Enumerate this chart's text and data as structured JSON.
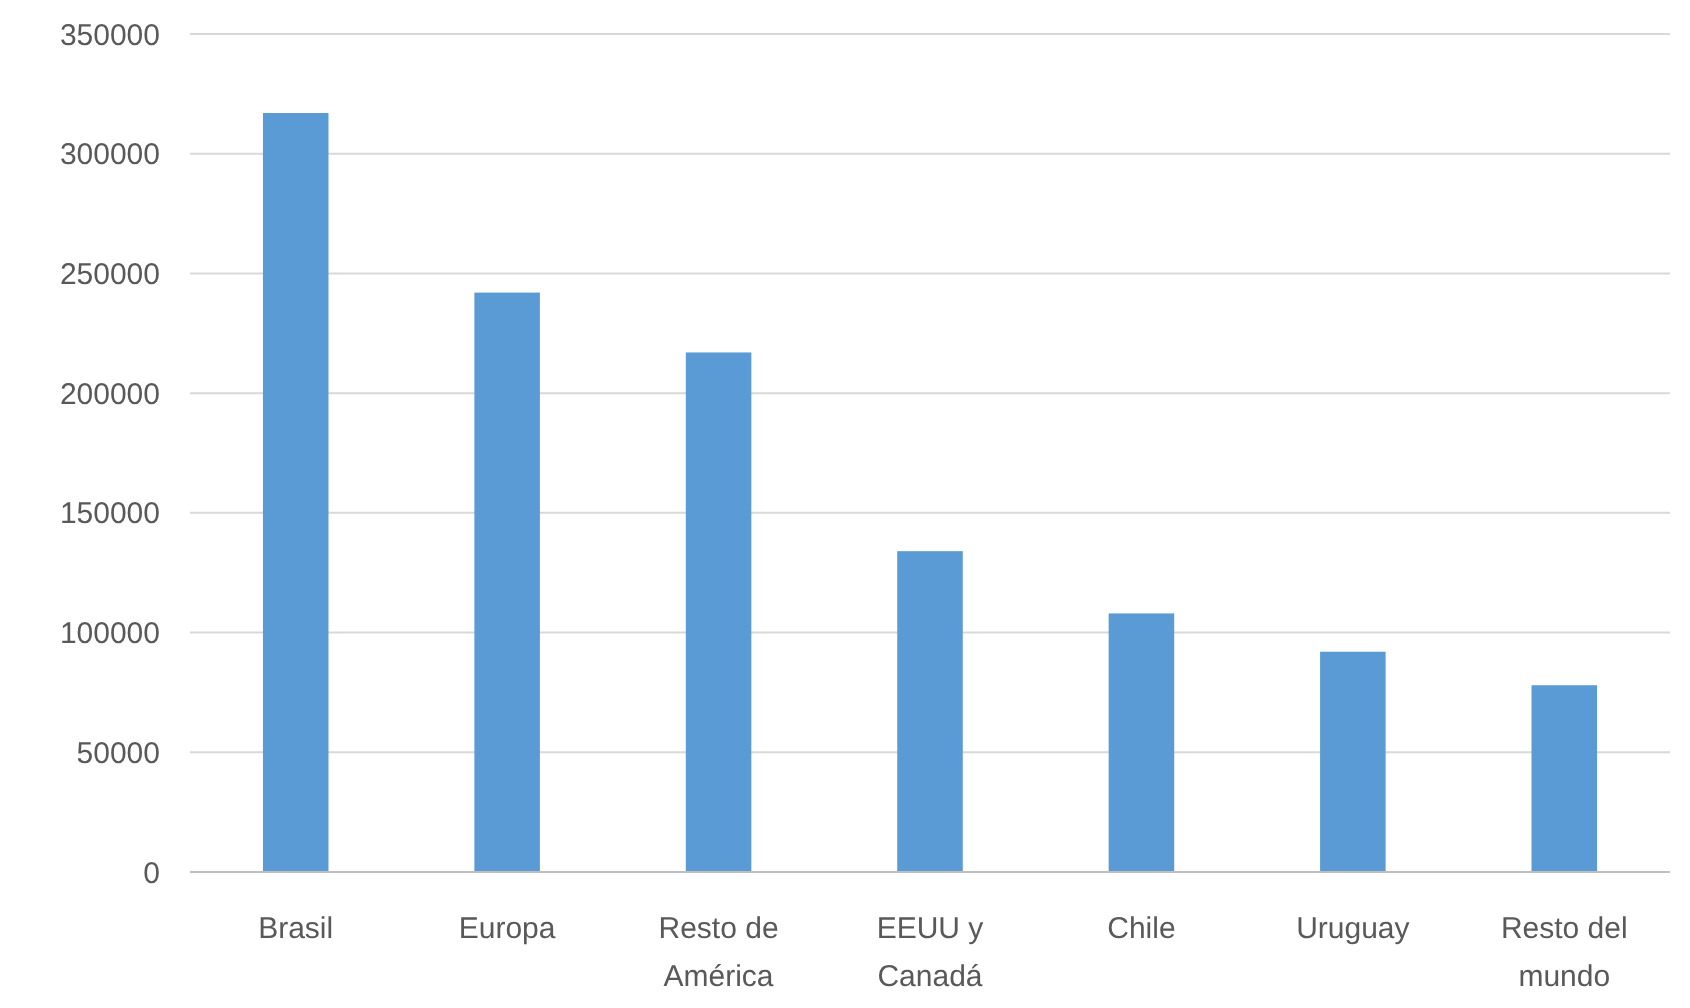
{
  "chart_data": {
    "type": "bar",
    "categories": [
      "Brasil",
      "Europa",
      "Resto de América",
      "EEUU y Canadá",
      "Chile",
      "Uruguay",
      "Resto del mundo"
    ],
    "values": [
      317000,
      242000,
      217000,
      134000,
      108000,
      92000,
      78000
    ],
    "color": "#5b9bd5",
    "ylim": [
      0,
      350000
    ],
    "yticks": [
      0,
      50000,
      100000,
      150000,
      200000,
      250000,
      300000,
      350000
    ],
    "grid": "y"
  }
}
